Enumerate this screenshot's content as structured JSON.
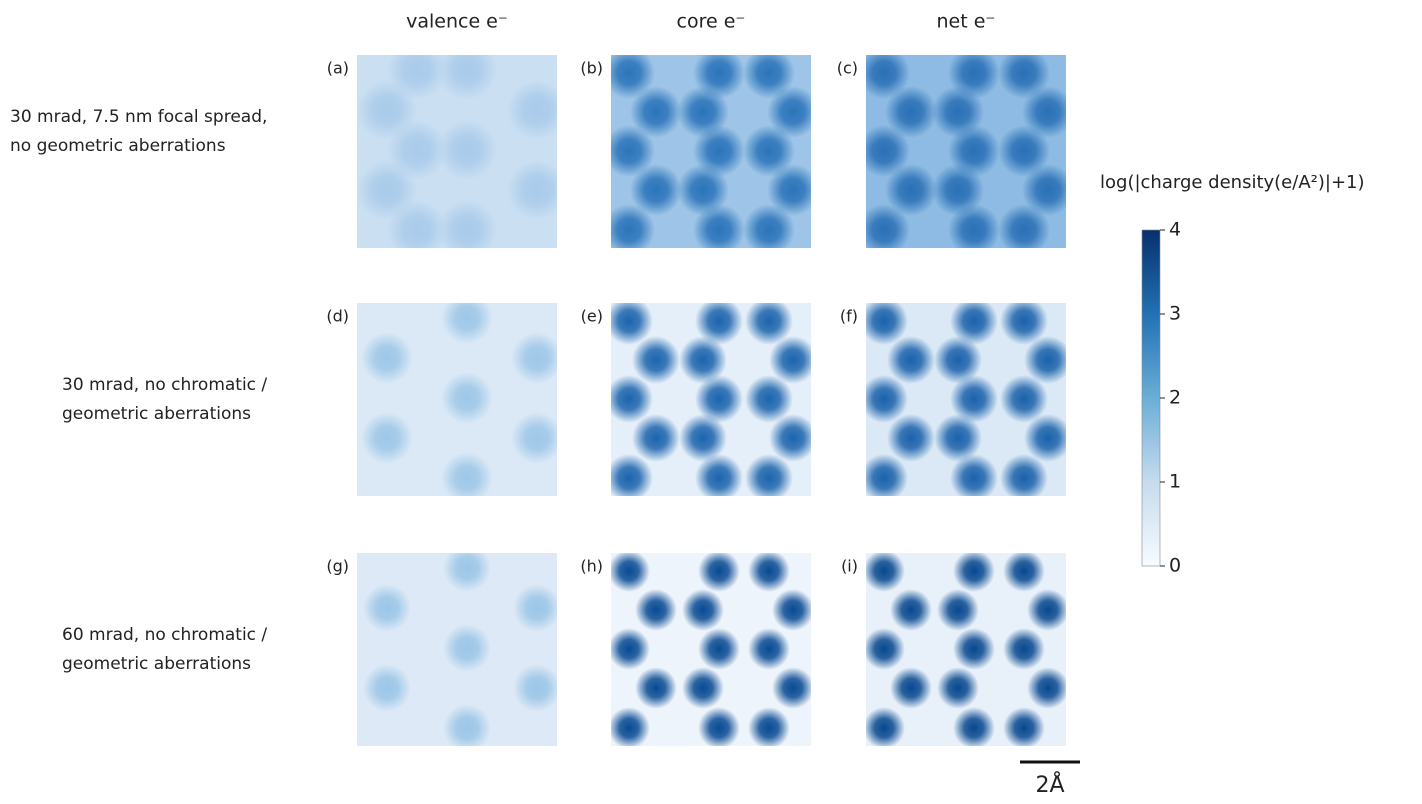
{
  "columns": [
    "valence e⁻",
    "core e⁻",
    "net e⁻"
  ],
  "rows": [
    {
      "label": [
        "30 mrad, 7.5 nm focal spread,",
        "no geometric aberrations"
      ],
      "panels": [
        "(a)",
        "(b)",
        "(c)"
      ]
    },
    {
      "label": [
        "30 mrad, no chromatic /",
        "geometric aberrations"
      ],
      "panels": [
        "(d)",
        "(e)",
        "(f)"
      ]
    },
    {
      "label": [
        "60 mrad, no chromatic /",
        "geometric aberrations"
      ],
      "panels": [
        "(g)",
        "(h)",
        "(i)"
      ]
    }
  ],
  "colorbar": {
    "label": "log(|charge density(e/A²)|+1)",
    "lim": [
      0,
      4
    ],
    "ticks": [
      0,
      1,
      2,
      3,
      4
    ]
  },
  "scale_bar": "2Å"
}
